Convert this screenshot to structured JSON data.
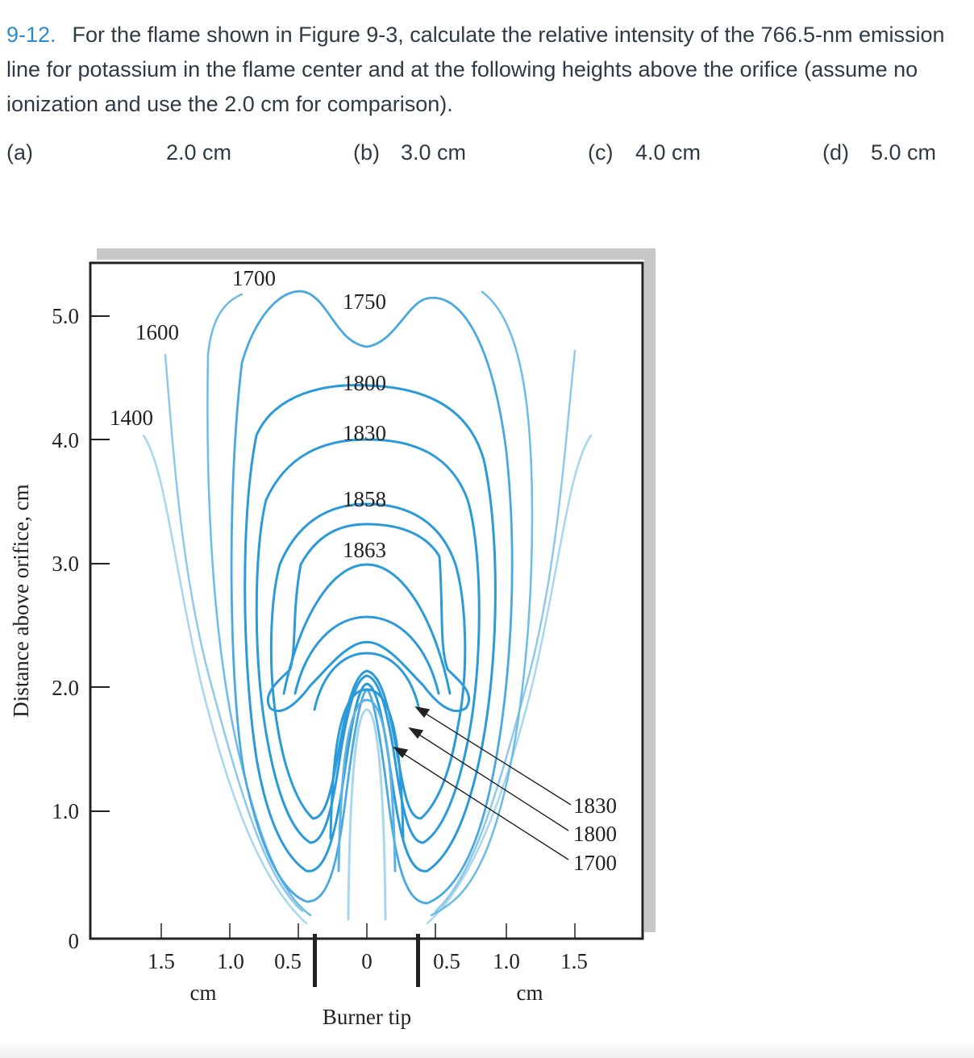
{
  "problem": {
    "number": "9-12.",
    "text": "For the flame shown in Figure 9-3, calculate the relative intensity of the 766.5-nm emission line for potassium in the flame center and at the following heights above the orifice (assume no ionization and use the 2.0 cm for comparison)."
  },
  "choices": [
    {
      "label": "(a)",
      "value": "2.0 cm"
    },
    {
      "label": "(b)",
      "value": "3.0 cm"
    },
    {
      "label": "(c)",
      "value": "4.0 cm"
    },
    {
      "label": "(d)",
      "value": "5.0 cm"
    }
  ],
  "figure": {
    "y_axis_label": "Distance above orifice, cm",
    "y_ticks": [
      "5.0",
      "4.0",
      "3.0",
      "2.0",
      "1.0",
      "0"
    ],
    "x_ticks_left": [
      "1.5",
      "1.0",
      "0.5"
    ],
    "x_tick_center": "0",
    "x_ticks_right": [
      "0.5",
      "1.0",
      "1.5"
    ],
    "x_unit_left": "cm",
    "x_unit_right": "cm",
    "x_axis_label": "Burner tip",
    "isotherm_labels": [
      "1700",
      "1750",
      "1600",
      "1800",
      "1400",
      "1830",
      "1858",
      "1863"
    ],
    "callout_labels": [
      "1830",
      "1800",
      "1700"
    ],
    "colors": {
      "hot": "#2b9ad8",
      "mid": "#5cb3e3",
      "cool": "#a8d6f0",
      "axis": "#222222"
    }
  }
}
